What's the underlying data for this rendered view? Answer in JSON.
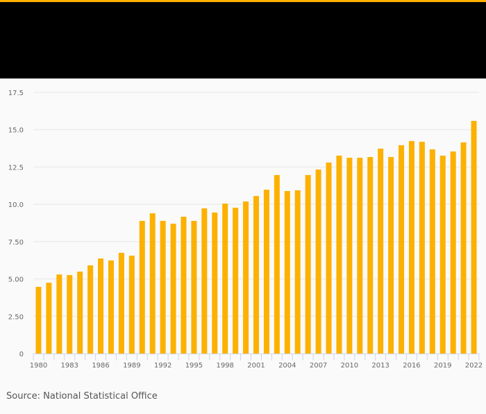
{
  "source": "Source: National Statistical Office",
  "chart_data": {
    "type": "bar",
    "title": "",
    "xlabel": "",
    "ylabel": "",
    "ylim": [
      0,
      17.5
    ],
    "yticks": [
      "0",
      "2.50",
      "5.00",
      "7.50",
      "10.0",
      "12.5",
      "15.0",
      "17.5"
    ],
    "grid": true,
    "bar_color": "#fcb100",
    "categories": [
      1980,
      1981,
      1982,
      1983,
      1984,
      1985,
      1986,
      1987,
      1988,
      1989,
      1990,
      1991,
      1992,
      1993,
      1994,
      1995,
      1996,
      1997,
      1998,
      1999,
      2000,
      2001,
      2002,
      2003,
      2004,
      2005,
      2006,
      2007,
      2008,
      2009,
      2010,
      2011,
      2012,
      2013,
      2014,
      2015,
      2016,
      2017,
      2018,
      2019,
      2020,
      2021,
      2022
    ],
    "xtick_labels": [
      "1980",
      "1983",
      "1986",
      "1989",
      "1992",
      "1995",
      "1998",
      "2001",
      "2004",
      "2007",
      "2010",
      "2013",
      "2016",
      "2019",
      "2022"
    ],
    "values": [
      4.47,
      4.75,
      5.3,
      5.26,
      5.49,
      5.91,
      6.37,
      6.24,
      6.75,
      6.56,
      8.89,
      9.4,
      8.89,
      8.7,
      9.17,
      8.89,
      9.73,
      9.45,
      10.05,
      9.77,
      10.19,
      10.56,
      10.98,
      11.96,
      10.89,
      10.94,
      11.96,
      12.33,
      12.8,
      13.26,
      13.12,
      13.12,
      13.17,
      13.73,
      13.17,
      13.96,
      14.24,
      14.19,
      13.68,
      13.26,
      13.54,
      14.15,
      15.59
    ]
  }
}
